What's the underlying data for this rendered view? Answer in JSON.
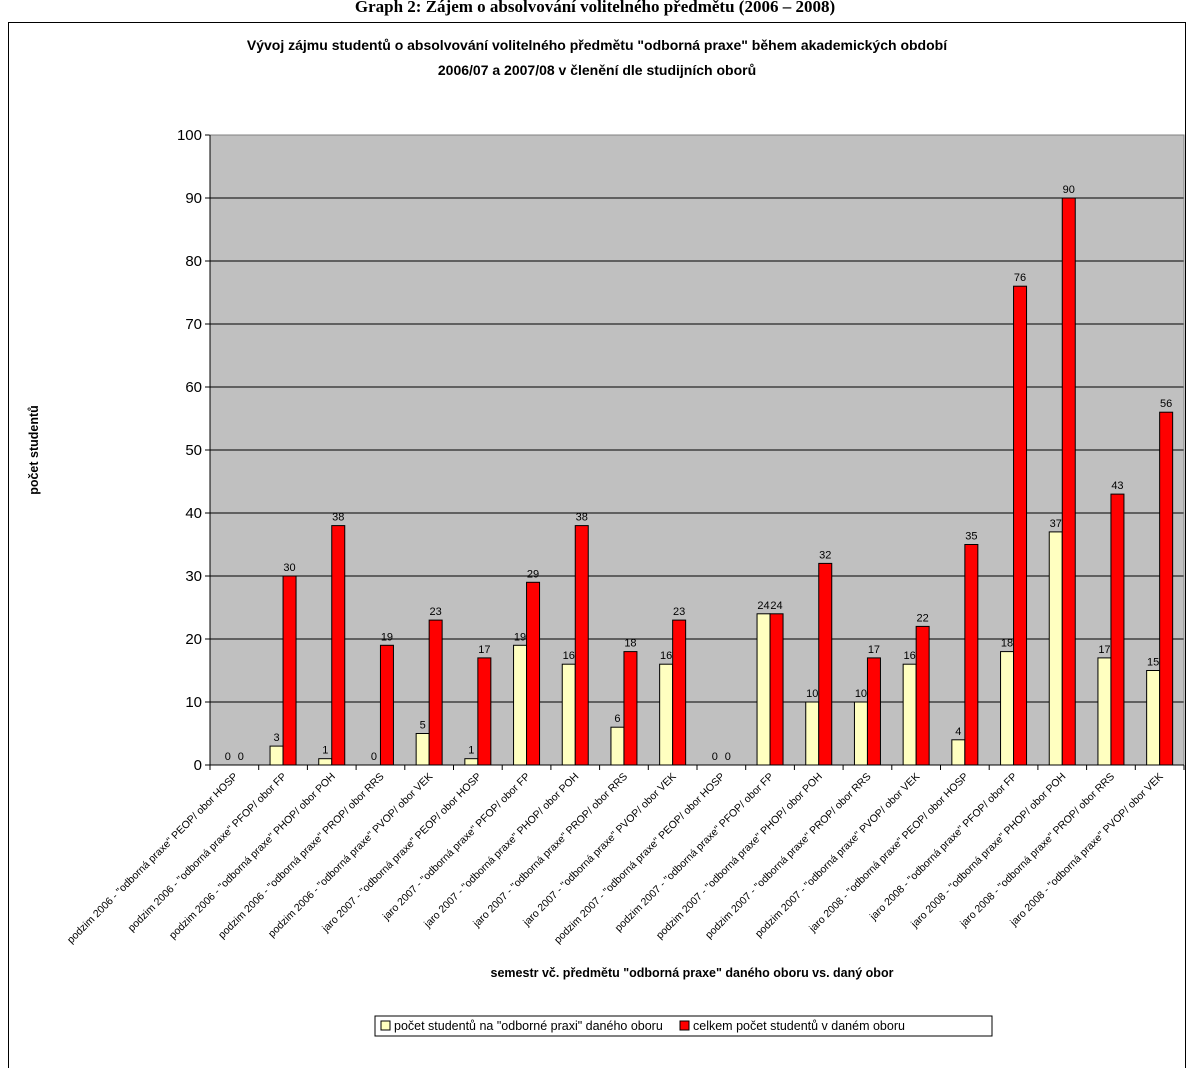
{
  "top_caption": "Graph 2: Zájem o absolvování volitelného předmětu (2006 – 2008)",
  "chart_data": {
    "type": "bar",
    "title": "Vývoj zájmu studentů o absolvování volitelného předmětu \"odborná praxe\" během akademických období 2006/07 a 2007/08 v členění dle studijních oborů",
    "title_lines": [
      "Vývoj zájmu studentů o absolvování volitelného předmětu \"odborná praxe\" během akademických období",
      "2006/07 a 2007/08 v členění dle studijních oborů"
    ],
    "xlabel": "semestr vč. předmětu \"odborná praxe\" daného oboru vs. daný obor",
    "ylabel": "počet studentů",
    "ylim": [
      0,
      100
    ],
    "yticks": [
      0,
      10,
      20,
      30,
      40,
      50,
      60,
      70,
      80,
      90,
      100
    ],
    "grid": true,
    "legend_position": "bottom",
    "categories": [
      "podzim 2006 - \"odborná praxe\" PEOP/ obor HOSP",
      "podzim 2006 - \"odborná praxe\" PFOP/ obor FP",
      "podzim 2006 - \"odborná praxe\" PHOP/ obor POH",
      "podzim 2006 - \"odborná praxe\" PROP/ obor RRS",
      "podzim 2006 - \"odborná praxe\" PVOP/ obor VEK",
      "jaro 2007 - \"odborná praxe\" PEOP/ obor HOSP",
      "jaro 2007 - \"odborná praxe\" PFOP/ obor FP",
      "jaro 2007 - \"odborná praxe\" PHOP/ obor POH",
      "jaro 2007 - \"odborná praxe\" PROP/ obor RRS",
      "jaro 2007 - \"odborná praxe\" PVOP/ obor VEK",
      "podzim 2007 - \"odborná praxe\" PEOP/ obor HOSP",
      "podzim 2007 - \"odborná praxe\" PFOP/ obor FP",
      "podzim 2007 - \"odborná praxe\" PHOP/ obor POH",
      "podzim 2007 - \"odborná praxe\" PROP/ obor RRS",
      "podzim 2007 - \"odborná praxe\" PVOP/ obor VEK",
      "jaro 2008 - \"odborná praxe\" PEOP/ obor HOSP",
      "jaro 2008 - \"odborná praxe\" PFOP/ obor FP",
      "jaro 2008 - \"odborná praxe\" PHOP/ obor POH",
      "jaro 2008 - \"odborná praxe\" PROP/ obor RRS",
      "jaro 2008 - \"odborná praxe\" PVOP/ obor VEK"
    ],
    "series": [
      {
        "name": "počet studentů na \"odborné praxi\" daného oboru",
        "color": "#ffffc0",
        "values": [
          0,
          3,
          1,
          0,
          5,
          1,
          19,
          16,
          6,
          16,
          0,
          24,
          10,
          10,
          16,
          4,
          18,
          37,
          17,
          15
        ]
      },
      {
        "name": "celkem počet studentů v daném oboru",
        "color": "#ff0000",
        "values": [
          0,
          30,
          38,
          19,
          23,
          17,
          29,
          38,
          18,
          23,
          0,
          24,
          32,
          17,
          22,
          35,
          76,
          90,
          43,
          56
        ]
      }
    ],
    "plot_background": "#c0c0c0"
  }
}
